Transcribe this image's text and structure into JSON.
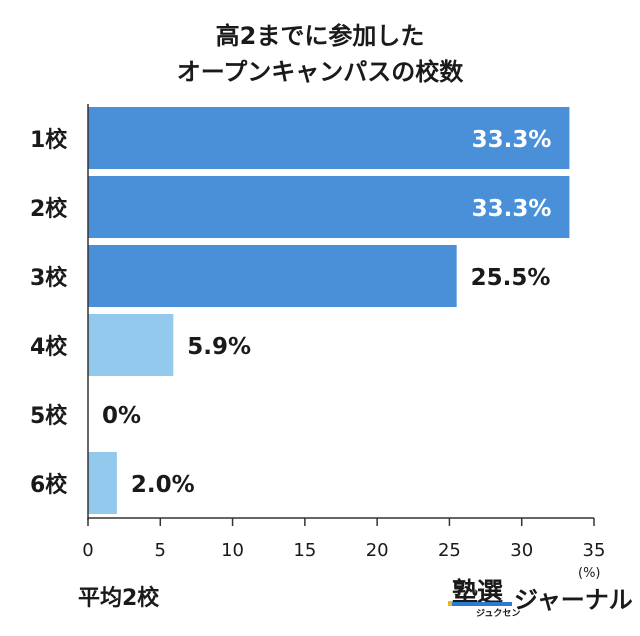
{
  "chart_data": {
    "type": "bar",
    "orientation": "horizontal",
    "title_lines": [
      "高2までに参加した",
      "オープンキャンパスの校数"
    ],
    "categories": [
      "1校",
      "2校",
      "3校",
      "4校",
      "5校",
      "6校"
    ],
    "values": [
      33.3,
      33.3,
      25.5,
      5.9,
      0,
      2.0
    ],
    "value_labels": [
      "33.3%",
      "33.3%",
      "25.5%",
      "5.9%",
      "0%",
      "2.0%"
    ],
    "xlim": [
      0,
      35
    ],
    "x_ticks": [
      0,
      5,
      10,
      15,
      20,
      25,
      30,
      35
    ],
    "unit": "(%)",
    "summary": "平均2校",
    "grid": false,
    "colors": {
      "dark_bar": "#4a90d9",
      "light_bar": "#94c9ee",
      "inside_label": "#ffffff",
      "outside_label": "#1a1a1a",
      "axis": "#333333"
    }
  },
  "logo": {
    "main": "塾選",
    "sub": "ジュクセン",
    "text": "ジャーナル"
  }
}
